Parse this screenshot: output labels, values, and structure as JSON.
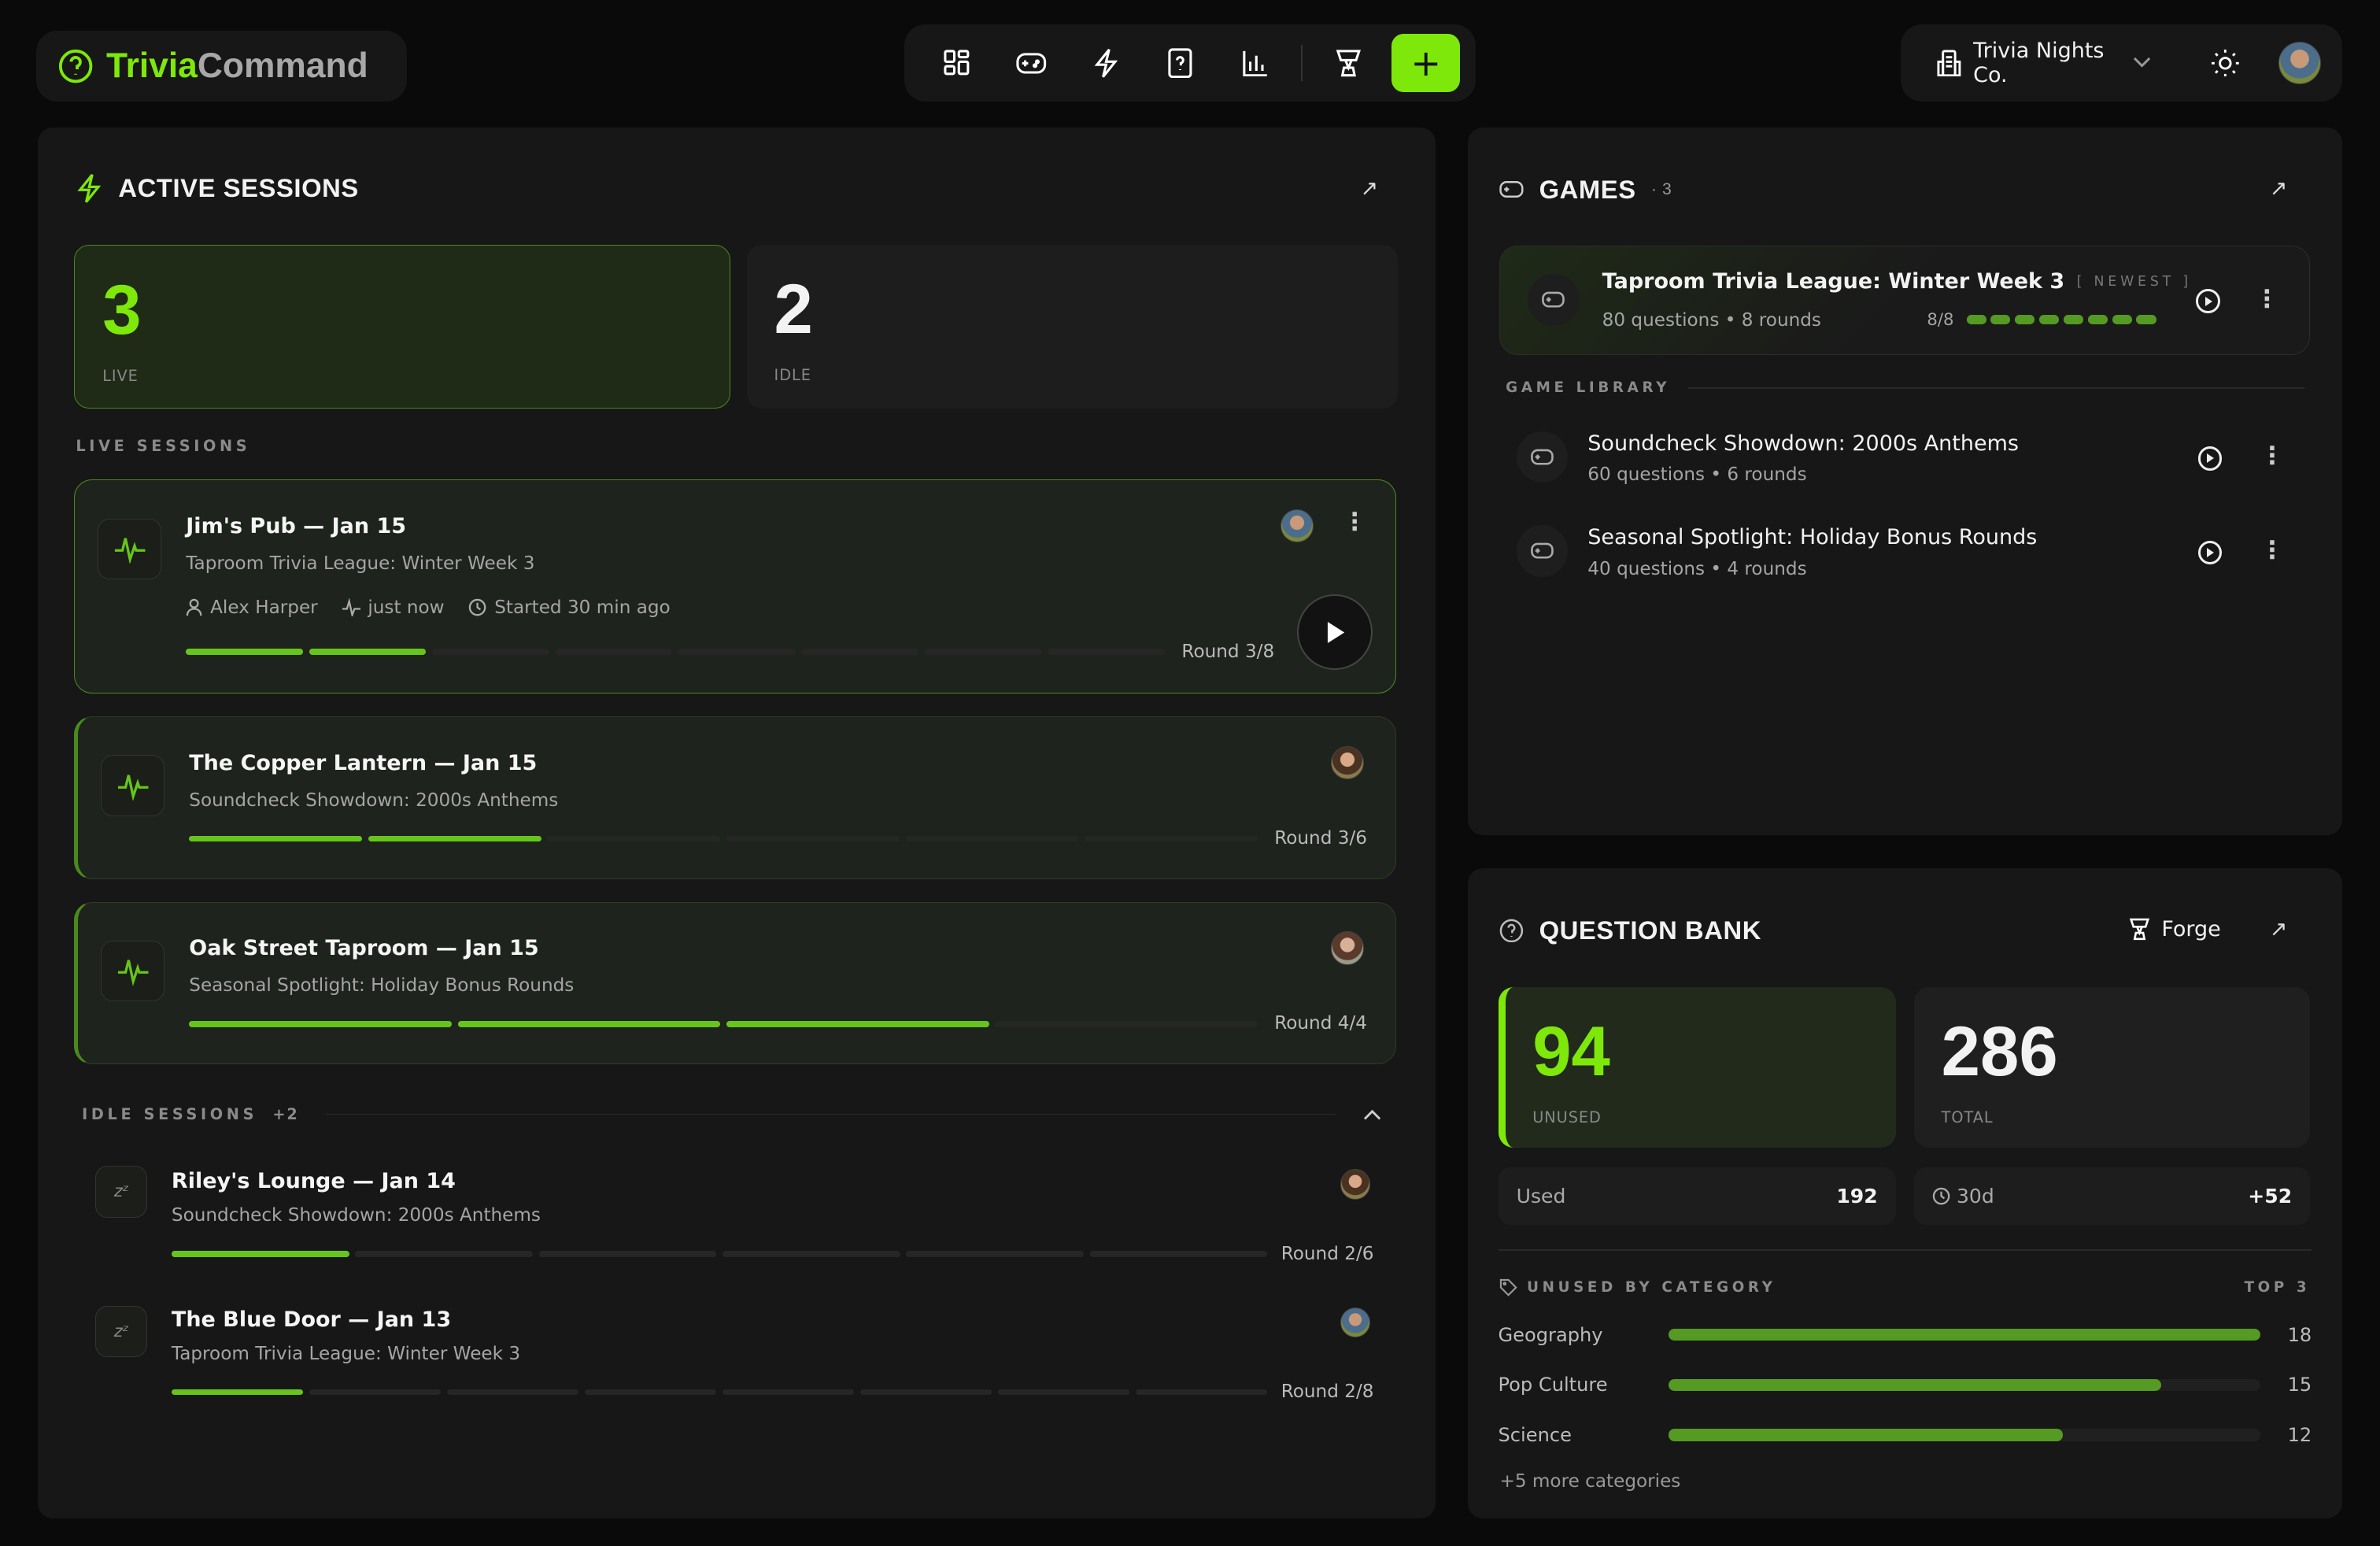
{
  "brand": {
    "part1": "Trivia",
    "part2": "Command",
    "accent": "#7ee80a"
  },
  "nav": {
    "items": [
      {
        "icon": "dashboard-icon"
      },
      {
        "icon": "gamepad-icon"
      },
      {
        "icon": "lightning-icon"
      },
      {
        "icon": "question-icon"
      },
      {
        "icon": "bar-chart-icon"
      },
      {
        "icon": "trophy-icon"
      }
    ],
    "add_label": "+"
  },
  "account": {
    "org": "Trivia Nights Co."
  },
  "active": {
    "title": "ACTIVE SESSIONS",
    "live_count": "3",
    "live_label": "LIVE",
    "idle_count": "2",
    "idle_label": "IDLE",
    "live_header": "LIVE SESSIONS",
    "live": [
      {
        "title": "Jim's Pub — Jan 15",
        "game": "Taproom Trivia League: Winter Week 3",
        "host": "Alex Harper",
        "activity": "just now",
        "started": "Started 30 min ago",
        "round": "Round 3/8",
        "segments": 8,
        "filled": 2
      },
      {
        "title": "The Copper Lantern — Jan 15",
        "game": "Soundcheck Showdown: 2000s Anthems",
        "round": "Round 3/6",
        "segments": 6,
        "filled": 2
      },
      {
        "title": "Oak Street Taproom — Jan 15",
        "game": "Seasonal Spotlight: Holiday Bonus Rounds",
        "round": "Round 4/4",
        "segments": 4,
        "filled": 3
      }
    ],
    "idle_header": "IDLE SESSIONS",
    "idle_more": "+2",
    "idle": [
      {
        "title": "Riley's Lounge — Jan 14",
        "game": "Soundcheck Showdown: 2000s Anthems",
        "round": "Round 2/6",
        "segments": 6,
        "filled": 1
      },
      {
        "title": "The Blue Door — Jan 13",
        "game": "Taproom Trivia League: Winter Week 3",
        "round": "Round 2/8",
        "segments": 8,
        "filled": 1
      }
    ]
  },
  "games": {
    "title": "GAMES",
    "count": "· 3",
    "featured": {
      "title": "Taproom Trivia League: Winter Week 3",
      "badge": "[ NEWEST ]",
      "meta": "80 questions • 8 rounds",
      "progress": "8/8",
      "dots_total": 8,
      "dots_filled": 8
    },
    "library_label": "GAME LIBRARY",
    "library": [
      {
        "title": "Soundcheck Showdown: 2000s Anthems",
        "meta": "60 questions • 6 rounds"
      },
      {
        "title": "Seasonal Spotlight: Holiday Bonus Rounds",
        "meta": "40 questions • 4 rounds"
      }
    ]
  },
  "qbank": {
    "title": "QUESTION BANK",
    "forge": "Forge",
    "unused": "94",
    "unused_label": "UNUSED",
    "total": "286",
    "total_label": "TOTAL",
    "used_label": "Used",
    "used": "192",
    "period": "30d",
    "period_delta": "+52",
    "cat_label": "UNUSED BY CATEGORY",
    "top_label": "TOP 3",
    "categories": [
      {
        "name": "Geography",
        "value": 18
      },
      {
        "name": "Pop Culture",
        "value": 15
      },
      {
        "name": "Science",
        "value": 12
      }
    ],
    "more": "+5 more categories"
  }
}
